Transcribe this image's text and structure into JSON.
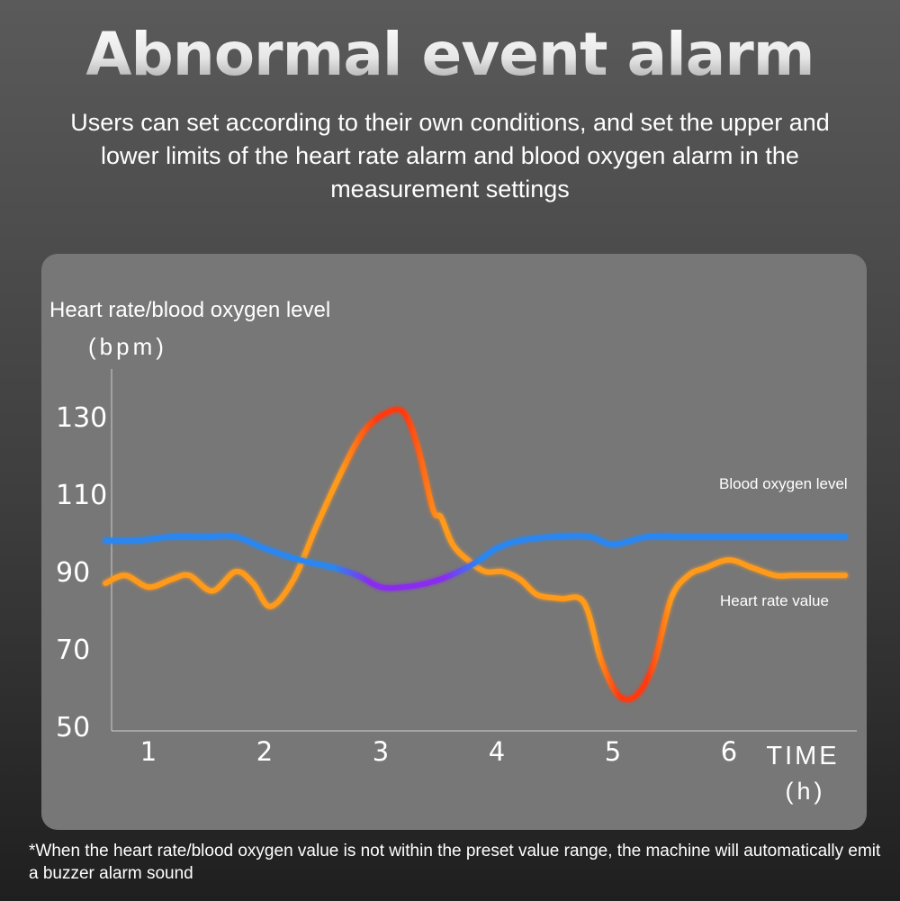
{
  "title": "Abnormal event alarm",
  "subtitle": "Users can set according to their own conditions, and set the upper and lower limits of the heart rate alarm and blood oxygen alarm in the measurement settings",
  "footnote": "*When the heart rate/blood oxygen value is not within the preset value range, the machine will automatically emit a buzzer alarm sound",
  "chart_data": {
    "type": "line",
    "ylabel": "Heart rate/blood oxygen level",
    "yunit": "(bpm)",
    "xlabel": "TIME",
    "xunit": "(h)",
    "yticks": [
      130,
      110,
      90,
      70,
      50
    ],
    "xticks": [
      1,
      2,
      3,
      4,
      5,
      6
    ],
    "ylim": [
      50,
      130
    ],
    "xlim": [
      0.6,
      7.0
    ],
    "series": [
      {
        "name": "Heart rate value",
        "color": "#ff9a1a",
        "alarm_color": "#ff3a10",
        "x": [
          0.63,
          0.8,
          1.0,
          1.2,
          1.35,
          1.55,
          1.75,
          1.9,
          2.05,
          2.25,
          2.45,
          2.65,
          2.85,
          3.05,
          3.2,
          3.32,
          3.45,
          3.52,
          3.62,
          3.75,
          3.9,
          4.05,
          4.2,
          4.35,
          4.55,
          4.75,
          4.9,
          5.05,
          5.2,
          5.35,
          5.5,
          5.65,
          5.8,
          6.0,
          6.2,
          6.4,
          6.55,
          6.75,
          7.0
        ],
        "y": [
          87,
          89,
          86,
          88,
          89,
          85,
          90,
          87,
          81,
          88,
          102,
          115,
          126,
          131,
          131,
          122,
          106,
          104,
          97,
          93,
          90,
          90,
          88,
          84,
          83,
          82,
          67,
          58,
          58,
          66,
          83,
          89,
          91,
          93,
          91,
          89,
          89,
          89,
          89
        ],
        "alarm_ranges": [
          [
            2.65,
            3.52
          ],
          [
            4.85,
            5.5
          ]
        ]
      },
      {
        "name": "Blood oxygen level",
        "color": "#2a86f0",
        "low_color": "#8a2cf0",
        "x": [
          0.63,
          0.9,
          1.2,
          1.5,
          1.75,
          2.0,
          2.3,
          2.6,
          2.8,
          3.0,
          3.2,
          3.4,
          3.6,
          3.8,
          4.0,
          4.2,
          4.5,
          4.8,
          5.0,
          5.3,
          5.6,
          5.9,
          6.2,
          6.5,
          6.8,
          7.0
        ],
        "y": [
          98,
          98,
          99,
          99,
          99,
          96,
          93,
          91,
          89,
          86,
          86,
          87,
          89,
          92,
          96,
          98,
          99,
          99,
          97,
          99,
          99,
          99,
          99,
          99,
          99,
          99
        ],
        "low_range": [
          2.6,
          3.85
        ]
      }
    ]
  }
}
